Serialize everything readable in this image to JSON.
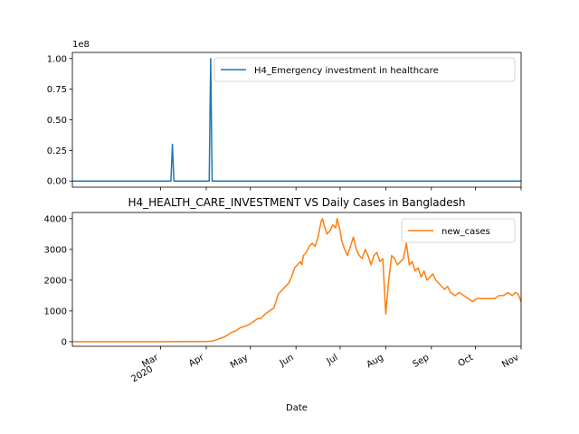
{
  "chart_data": [
    {
      "type": "line",
      "title": "",
      "xlabel": "",
      "ylabel": "",
      "offset_label": "1e8",
      "ylim": [
        -0.05,
        1.05
      ],
      "yticks": [
        "0.00",
        "0.25",
        "0.50",
        "0.75",
        "1.00"
      ],
      "legend_position": "top-right",
      "grid": false,
      "series": [
        {
          "name": "H4_Emergency investment in healthcare",
          "color": "#1f77b4",
          "x": [
            "2020-01-01",
            "2020-03-08",
            "2020-03-09",
            "2020-03-10",
            "2020-04-03",
            "2020-04-04",
            "2020-04-05",
            "2020-11-01"
          ],
          "y": [
            0,
            0,
            0.3,
            0,
            0,
            1.0,
            0,
            0
          ]
        }
      ]
    },
    {
      "type": "line",
      "title": "H4_HEALTH_CARE_INVESTMENT VS Daily Cases in Bangladesh",
      "xlabel": "Date",
      "ylabel": "",
      "ylim": [
        -150,
        4200
      ],
      "yticks": [
        "0",
        "1000",
        "2000",
        "3000",
        "4000"
      ],
      "xticks": [
        {
          "date": "2020-03-01",
          "label": "Mar",
          "sublabel": "2020"
        },
        {
          "date": "2020-04-01",
          "label": "Apr",
          "sublabel": ""
        },
        {
          "date": "2020-05-01",
          "label": "May",
          "sublabel": ""
        },
        {
          "date": "2020-06-01",
          "label": "Jun",
          "sublabel": ""
        },
        {
          "date": "2020-07-01",
          "label": "Jul",
          "sublabel": ""
        },
        {
          "date": "2020-08-01",
          "label": "Aug",
          "sublabel": ""
        },
        {
          "date": "2020-09-01",
          "label": "Sep",
          "sublabel": ""
        },
        {
          "date": "2020-10-01",
          "label": "Oct",
          "sublabel": ""
        },
        {
          "date": "2020-11-01",
          "label": "Nov",
          "sublabel": ""
        }
      ],
      "legend_position": "top-right",
      "grid": false,
      "series": [
        {
          "name": "new_cases",
          "color": "#ff7f0e",
          "x": [
            "2020-01-01",
            "2020-03-08",
            "2020-03-20",
            "2020-04-01",
            "2020-04-05",
            "2020-04-08",
            "2020-04-10",
            "2020-04-13",
            "2020-04-15",
            "2020-04-18",
            "2020-04-21",
            "2020-04-24",
            "2020-04-27",
            "2020-04-30",
            "2020-05-03",
            "2020-05-06",
            "2020-05-08",
            "2020-05-11",
            "2020-05-14",
            "2020-05-17",
            "2020-05-20",
            "2020-05-23",
            "2020-05-25",
            "2020-05-27",
            "2020-05-29",
            "2020-05-31",
            "2020-06-02",
            "2020-06-04",
            "2020-06-05",
            "2020-06-06",
            "2020-06-08",
            "2020-06-10",
            "2020-06-12",
            "2020-06-14",
            "2020-06-16",
            "2020-06-18",
            "2020-06-19",
            "2020-06-20",
            "2020-06-22",
            "2020-06-24",
            "2020-06-26",
            "2020-06-28",
            "2020-06-29",
            "2020-07-01",
            "2020-07-02",
            "2020-07-04",
            "2020-07-06",
            "2020-07-08",
            "2020-07-10",
            "2020-07-12",
            "2020-07-14",
            "2020-07-16",
            "2020-07-18",
            "2020-07-20",
            "2020-07-22",
            "2020-07-24",
            "2020-07-26",
            "2020-07-28",
            "2020-07-30",
            "2020-08-01",
            "2020-08-03",
            "2020-08-05",
            "2020-08-07",
            "2020-08-09",
            "2020-08-11",
            "2020-08-13",
            "2020-08-15",
            "2020-08-17",
            "2020-08-19",
            "2020-08-21",
            "2020-08-23",
            "2020-08-25",
            "2020-08-27",
            "2020-08-29",
            "2020-08-31",
            "2020-09-02",
            "2020-09-04",
            "2020-09-06",
            "2020-09-08",
            "2020-09-10",
            "2020-09-12",
            "2020-09-14",
            "2020-09-17",
            "2020-09-20",
            "2020-09-23",
            "2020-09-26",
            "2020-09-29",
            "2020-10-02",
            "2020-10-05",
            "2020-10-08",
            "2020-10-11",
            "2020-10-14",
            "2020-10-17",
            "2020-10-20",
            "2020-10-23",
            "2020-10-26",
            "2020-10-28",
            "2020-10-30",
            "2020-11-01"
          ],
          "y": [
            0,
            0,
            3,
            5,
            20,
            60,
            100,
            150,
            200,
            300,
            350,
            450,
            500,
            550,
            650,
            750,
            750,
            900,
            1000,
            1100,
            1550,
            1700,
            1800,
            1900,
            2100,
            2400,
            2500,
            2600,
            2500,
            2800,
            2900,
            3100,
            3200,
            3100,
            3400,
            3900,
            4000,
            3800,
            3500,
            3600,
            3800,
            3700,
            4000,
            3600,
            3300,
            3000,
            2800,
            3100,
            3400,
            3000,
            2800,
            2700,
            3000,
            2800,
            2500,
            2800,
            2900,
            2600,
            2700,
            900,
            2000,
            2800,
            2700,
            2500,
            2600,
            2700,
            3200,
            2500,
            2600,
            2300,
            2400,
            2100,
            2300,
            2000,
            2100,
            2200,
            2000,
            1900,
            1800,
            1700,
            1800,
            1600,
            1500,
            1600,
            1500,
            1400,
            1300,
            1400,
            1400,
            1400,
            1400,
            1400,
            1500,
            1500,
            1600,
            1500,
            1600,
            1550,
            1300
          ]
        }
      ]
    }
  ]
}
